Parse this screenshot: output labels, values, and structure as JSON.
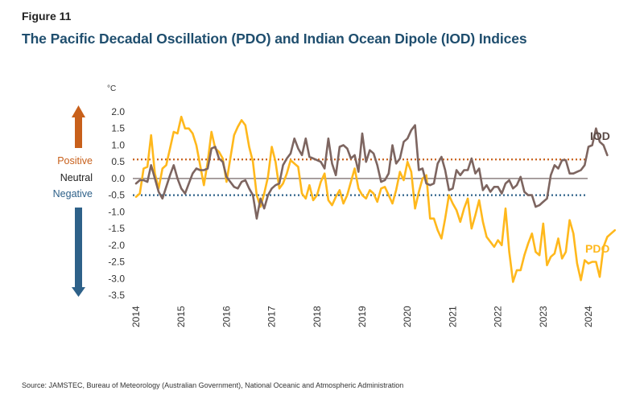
{
  "figure_label": "Figure 11",
  "title": "The Pacific Decadal Oscillation (PDO) and Indian Ocean Dipole (IOD) Indices",
  "source": "Source: JAMSTEC, Bureau of Meteorology (Australian Government), National Oceanic and Atmospheric Administration",
  "colors": {
    "pdo": "#ffb81c",
    "iod": "#7d6560",
    "positive": "#c8601b",
    "negative": "#2e6189",
    "neutral_line": "#8c8080",
    "title": "#1f4e6e"
  },
  "chart_data": {
    "type": "line",
    "title": "The Pacific Decadal Oscillation (PDO) and Indian Ocean Dipole (IOD) Indices",
    "unit_label": "°C",
    "xlabel": "",
    "ylabel": "°C",
    "ylim": [
      -3.5,
      2.0
    ],
    "xlim": [
      2014,
      2024
    ],
    "y_ticks": [
      "2.0",
      "1.5",
      "1.0",
      "0.5",
      "0.0",
      "-0.5",
      "-1.0",
      "-1.5",
      "-2.0",
      "-2.5",
      "-3.0",
      "-3.5"
    ],
    "y_tick_values": [
      2.0,
      1.5,
      1.0,
      0.5,
      0.0,
      -0.5,
      -1.0,
      -1.5,
      -2.0,
      -2.5,
      -3.0,
      -3.5
    ],
    "x_ticks": [
      "2014",
      "2015",
      "2016",
      "2017",
      "2018",
      "2019",
      "2020",
      "2021",
      "2022",
      "2023",
      "2024"
    ],
    "x_tick_values": [
      2014,
      2015,
      2016,
      2017,
      2018,
      2019,
      2020,
      2021,
      2022,
      2023,
      2024
    ],
    "grid": false,
    "thresholds": [
      {
        "name": "Positive",
        "value": 0.57,
        "style": "dotted"
      },
      {
        "name": "Neutral",
        "value": 0.0,
        "style": "solid"
      },
      {
        "name": "Negative",
        "value": -0.5,
        "style": "dotted"
      }
    ],
    "level_labels": {
      "positive": "Positive",
      "neutral": "Neutral",
      "negative": "Negative"
    },
    "frequency": "monthly",
    "start": 2014.0,
    "series": [
      {
        "name": "IOD",
        "label": "IOD",
        "values": [
          -0.15,
          -0.05,
          -0.05,
          -0.1,
          0.4,
          0.0,
          -0.4,
          -0.6,
          -0.25,
          0.1,
          0.4,
          0.0,
          -0.3,
          -0.45,
          -0.15,
          0.15,
          0.3,
          0.25,
          0.25,
          0.3,
          0.9,
          0.95,
          0.6,
          0.5,
          0.05,
          -0.1,
          -0.25,
          -0.3,
          -0.1,
          -0.05,
          -0.3,
          -0.5,
          -1.2,
          -0.6,
          -0.9,
          -0.5,
          -0.3,
          -0.2,
          -0.15,
          0.4,
          0.6,
          0.75,
          1.2,
          0.9,
          0.7,
          1.2,
          0.65,
          0.6,
          0.55,
          0.5,
          0.3,
          1.2,
          0.45,
          0.1,
          0.95,
          1.0,
          0.9,
          0.6,
          0.7,
          0.2,
          1.35,
          0.5,
          0.85,
          0.75,
          0.4,
          -0.1,
          -0.05,
          0.15,
          1.0,
          0.45,
          0.6,
          1.1,
          1.2,
          1.45,
          1.6,
          0.25,
          0.3,
          -0.15,
          -0.2,
          -0.15,
          0.45,
          0.65,
          0.25,
          -0.35,
          -0.3,
          0.25,
          0.1,
          0.25,
          0.25,
          0.6,
          0.15,
          0.3,
          -0.35,
          -0.2,
          -0.4,
          -0.25,
          -0.25,
          -0.45,
          -0.15,
          -0.05,
          -0.3,
          -0.2,
          0.05,
          -0.4,
          -0.5,
          -0.5,
          -0.85,
          -0.8,
          -0.7,
          -0.6,
          0.1,
          0.4,
          0.3,
          0.55,
          0.55,
          0.15,
          0.15,
          0.2,
          0.25,
          0.4,
          0.95,
          1.0,
          1.5,
          1.1,
          1.0,
          0.7
        ]
      },
      {
        "name": "PDO",
        "label": "PDO",
        "values": [
          -0.55,
          -0.45,
          0.3,
          0.35,
          1.3,
          0.15,
          -0.3,
          0.3,
          0.4,
          0.9,
          1.4,
          1.35,
          1.85,
          1.5,
          1.5,
          1.35,
          1.0,
          0.4,
          -0.2,
          0.5,
          1.4,
          0.9,
          0.8,
          0.6,
          -0.1,
          0.6,
          1.3,
          1.55,
          1.75,
          1.6,
          0.95,
          0.5,
          -0.5,
          -0.85,
          -0.45,
          0.05,
          0.95,
          0.5,
          -0.3,
          -0.15,
          0.15,
          0.55,
          0.45,
          0.35,
          -0.45,
          -0.6,
          -0.2,
          -0.65,
          -0.5,
          -0.1,
          0.15,
          -0.65,
          -0.8,
          -0.55,
          -0.35,
          -0.75,
          -0.5,
          -0.1,
          0.3,
          -0.3,
          -0.5,
          -0.6,
          -0.35,
          -0.45,
          -0.7,
          -0.3,
          -0.25,
          -0.5,
          -0.75,
          -0.35,
          0.2,
          -0.05,
          0.5,
          0.2,
          -0.9,
          -0.4,
          0.0,
          0.1,
          -1.2,
          -1.2,
          -1.55,
          -1.8,
          -1.2,
          -0.5,
          -0.75,
          -0.95,
          -1.3,
          -0.9,
          -0.6,
          -1.5,
          -1.1,
          -0.65,
          -1.3,
          -1.75,
          -1.9,
          -2.05,
          -1.85,
          -2.0,
          -0.9,
          -2.2,
          -3.1,
          -2.75,
          -2.75,
          -2.3,
          -1.95,
          -1.65,
          -2.2,
          -2.3,
          -1.35,
          -2.6,
          -2.35,
          -2.25,
          -1.8,
          -2.4,
          -2.2,
          -1.25,
          -1.65,
          -2.55,
          -3.05,
          -2.45,
          -2.55,
          -2.5,
          -2.5,
          -2.95,
          -2.05,
          -1.75,
          -1.65,
          -1.55
        ]
      }
    ]
  }
}
